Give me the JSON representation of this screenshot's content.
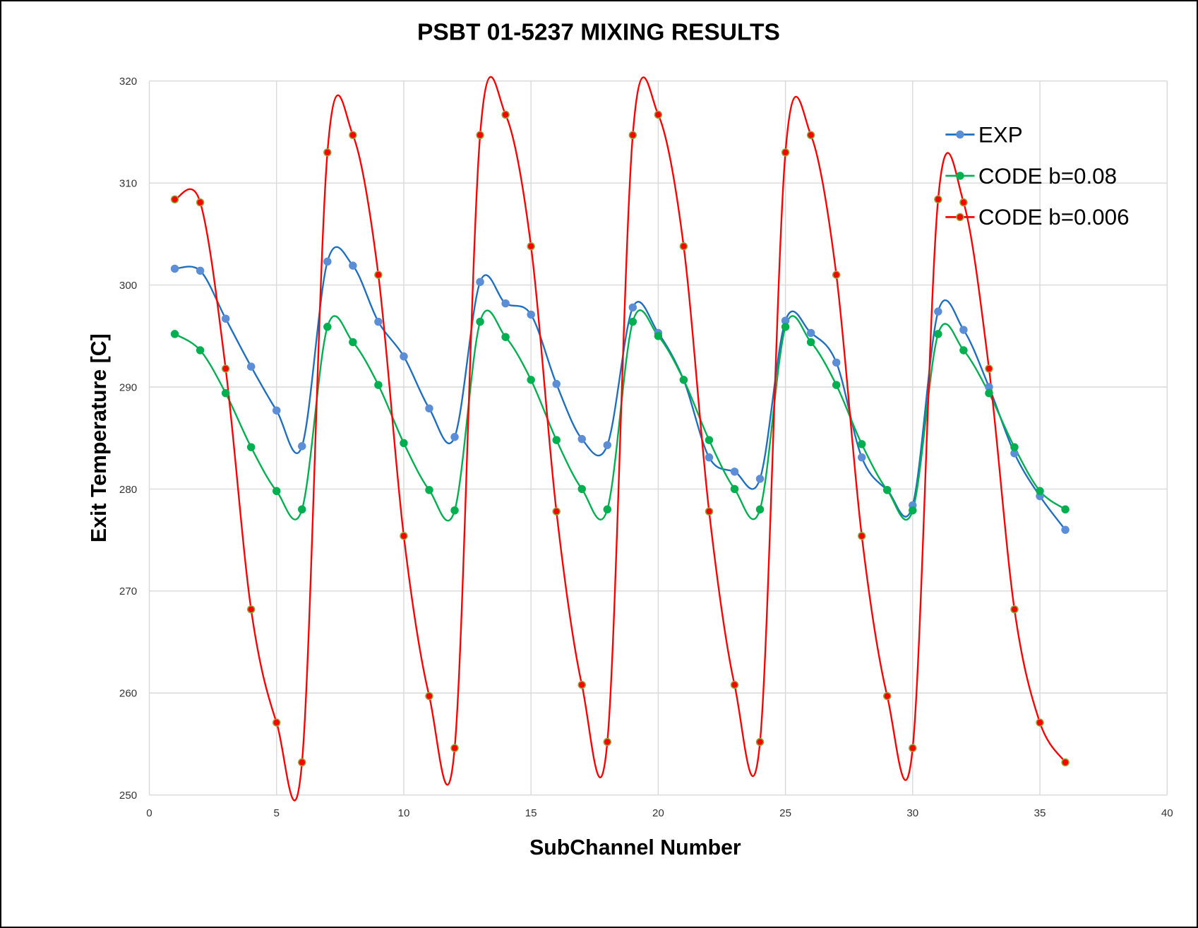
{
  "chart_data": {
    "type": "line",
    "title": "PSBT 01-5237 MIXING RESULTS",
    "xlabel": "SubChannel Number",
    "ylabel": "Exit Temperature [C]",
    "xlim": [
      0,
      40
    ],
    "ylim": [
      250,
      320
    ],
    "xticks": [
      0,
      5,
      10,
      15,
      20,
      25,
      30,
      35,
      40
    ],
    "yticks": [
      250,
      260,
      270,
      280,
      290,
      300,
      310,
      320
    ],
    "grid": true,
    "smooth": true,
    "legend_position": "top-right",
    "x": [
      1,
      2,
      3,
      4,
      5,
      6,
      7,
      8,
      9,
      10,
      11,
      12,
      13,
      14,
      15,
      16,
      17,
      18,
      19,
      20,
      21,
      22,
      23,
      24,
      25,
      26,
      27,
      28,
      29,
      30,
      31,
      32,
      33,
      34,
      35,
      36
    ],
    "series": [
      {
        "name": "EXP",
        "color": "#1f6fbf",
        "marker_fill": "#5b8ed6",
        "marker_edge": "#5b8ed6",
        "values": [
          301.6,
          301.4,
          296.7,
          292.0,
          287.7,
          284.2,
          302.3,
          301.9,
          296.4,
          293.0,
          287.9,
          285.1,
          300.3,
          298.2,
          297.1,
          290.3,
          284.9,
          284.3,
          297.8,
          295.3,
          290.7,
          283.1,
          281.7,
          281.0,
          296.5,
          295.3,
          292.4,
          283.1,
          279.9,
          278.4,
          297.4,
          295.6,
          290.0,
          283.5,
          279.3,
          276.0
        ]
      },
      {
        "name": "CODE b=0.08",
        "color": "#00b050",
        "marker_fill": "#00b050",
        "marker_edge": "#00b050",
        "values": [
          295.2,
          293.6,
          289.4,
          284.1,
          279.8,
          278.0,
          295.9,
          294.4,
          290.2,
          284.5,
          279.9,
          277.9,
          296.4,
          294.9,
          290.7,
          284.8,
          280.0,
          278.0,
          296.4,
          295.0,
          290.7,
          284.8,
          280.0,
          278.0,
          295.9,
          294.4,
          290.2,
          284.4,
          279.9,
          277.9,
          295.2,
          293.6,
          289.4,
          284.1,
          279.8,
          278.0
        ]
      },
      {
        "name": "CODE b=0.006",
        "color": "#ff0000",
        "marker_fill": "#ff0000",
        "marker_edge": "#8faa3a",
        "values": [
          308.4,
          308.1,
          291.8,
          268.2,
          257.1,
          253.2,
          313.0,
          314.7,
          301.0,
          275.4,
          259.7,
          254.6,
          314.7,
          316.7,
          303.8,
          277.8,
          260.8,
          255.2,
          314.7,
          316.7,
          303.8,
          277.8,
          260.8,
          255.2,
          313.0,
          314.7,
          301.0,
          275.4,
          259.7,
          254.6,
          308.4,
          308.1,
          291.8,
          268.2,
          257.1,
          253.2
        ]
      }
    ]
  }
}
